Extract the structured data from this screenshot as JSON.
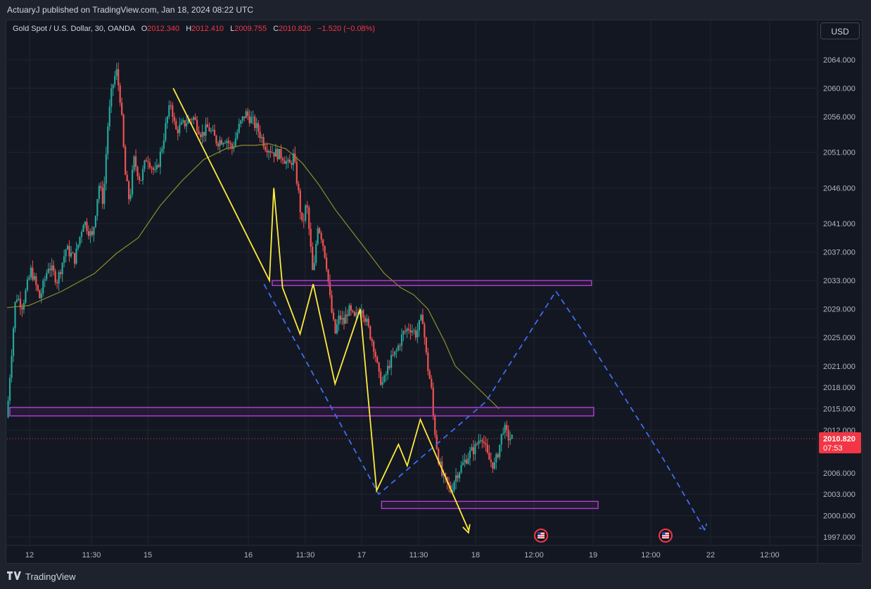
{
  "header": {
    "published_by": "ActuaryJ published on TradingView.com, Jan 18, 2024 08:22 UTC"
  },
  "legend": {
    "symbol": "Gold Spot / U.S. Dollar, 30, OANDA",
    "open_label": "O",
    "open": "2012.340",
    "high_label": "H",
    "high": "2012.410",
    "low_label": "L",
    "low": "2009.755",
    "close_label": "C",
    "close": "2010.820",
    "change": "−1.520 (−0.08%)"
  },
  "currency_button": "USD",
  "footer": {
    "brand": "TradingView"
  },
  "colors": {
    "background": "#131722",
    "up": "#26a69a",
    "down": "#ef5350",
    "ma_line": "#8b8e2a",
    "zigzag": "#ffeb3b",
    "projection": "#2962ff",
    "zone": "#9c27b0",
    "price_label": "#f23645"
  },
  "chart_data": {
    "type": "candlestick",
    "title": "Gold Spot / U.S. Dollar, 30, OANDA",
    "ylim": [
      1995.5,
      2067.5
    ],
    "yticks": [
      "2064.000",
      "2060.000",
      "2056.000",
      "2051.000",
      "2046.000",
      "2041.000",
      "2037.000",
      "2033.000",
      "2029.000",
      "2025.000",
      "2021.000",
      "2018.000",
      "2015.000",
      "2012.000",
      "2006.000",
      "2003.000",
      "2000.000",
      "1997.000"
    ],
    "xticks": [
      "12",
      "11:30",
      "15",
      "16",
      "11:30",
      "17",
      "11:30",
      "18",
      "12:00",
      "19",
      "12:00",
      "22",
      "12:00"
    ],
    "last_price": "2010.820",
    "countdown": "07:53",
    "ohlc_path": [
      [
        0,
        2013.8
      ],
      [
        2,
        2018.5
      ],
      [
        8,
        2031.0
      ],
      [
        14,
        2029.5
      ],
      [
        22,
        2034.5
      ],
      [
        30,
        2030.5
      ],
      [
        38,
        2035.2
      ],
      [
        46,
        2033.0
      ],
      [
        54,
        2037.5
      ],
      [
        62,
        2036.0
      ],
      [
        70,
        2041.5
      ],
      [
        78,
        2039.0
      ],
      [
        84,
        2046.5
      ],
      [
        88,
        2044.0
      ],
      [
        92,
        2054.5
      ],
      [
        96,
        2060.0
      ],
      [
        100,
        2062.5
      ],
      [
        104,
        2058.0
      ],
      [
        108,
        2048.0
      ],
      [
        112,
        2044.0
      ],
      [
        116,
        2050.0
      ],
      [
        122,
        2047.0
      ],
      [
        128,
        2050.5
      ],
      [
        136,
        2047.8
      ],
      [
        142,
        2052.0
      ],
      [
        146,
        2055.5
      ],
      [
        150,
        2058.0
      ],
      [
        154,
        2054.0
      ],
      [
        162,
        2055.0
      ],
      [
        170,
        2056.0
      ],
      [
        178,
        2053.5
      ],
      [
        184,
        2054.5
      ],
      [
        192,
        2052.5
      ],
      [
        200,
        2053.0
      ],
      [
        206,
        2051.5
      ],
      [
        212,
        2054.5
      ],
      [
        218,
        2056.5
      ],
      [
        224,
        2055.5
      ],
      [
        230,
        2054.0
      ],
      [
        236,
        2052.0
      ],
      [
        244,
        2051.0
      ],
      [
        252,
        2050.5
      ],
      [
        258,
        2049.0
      ],
      [
        262,
        2050.5
      ],
      [
        266,
        2046.0
      ],
      [
        270,
        2040.5
      ],
      [
        274,
        2044.0
      ],
      [
        278,
        2037.0
      ],
      [
        280,
        2033.0
      ],
      [
        284,
        2041.0
      ],
      [
        288,
        2039.0
      ],
      [
        292,
        2035.5
      ],
      [
        296,
        2029.5
      ],
      [
        300,
        2025.5
      ],
      [
        304,
        2028.0
      ],
      [
        308,
        2027.0
      ],
      [
        312,
        2029.0
      ],
      [
        318,
        2027.5
      ],
      [
        324,
        2029.5
      ],
      [
        330,
        2026.5
      ],
      [
        336,
        2023.5
      ],
      [
        340,
        2019.5
      ],
      [
        344,
        2018.5
      ],
      [
        350,
        2021.5
      ],
      [
        356,
        2023.0
      ],
      [
        362,
        2025.5
      ],
      [
        368,
        2026.5
      ],
      [
        374,
        2025.5
      ],
      [
        380,
        2028.0
      ],
      [
        384,
        2021.5
      ],
      [
        388,
        2018.0
      ],
      [
        390,
        2013.5
      ],
      [
        394,
        2008.5
      ],
      [
        398,
        2005.5
      ],
      [
        402,
        2004.5
      ],
      [
        406,
        2003.5
      ],
      [
        410,
        2005.5
      ],
      [
        416,
        2007.0
      ],
      [
        422,
        2008.5
      ],
      [
        428,
        2009.5
      ],
      [
        434,
        2011.5
      ],
      [
        440,
        2008.0
      ],
      [
        446,
        2007.0
      ],
      [
        450,
        2009.5
      ],
      [
        454,
        2012.5
      ],
      [
        458,
        2011.0
      ],
      [
        462,
        2010.8
      ]
    ],
    "ma_path": [
      [
        0,
        2029.2
      ],
      [
        20,
        2029.5
      ],
      [
        50,
        2031.5
      ],
      [
        80,
        2034.0
      ],
      [
        100,
        2036.8
      ],
      [
        120,
        2039.0
      ],
      [
        140,
        2043.5
      ],
      [
        160,
        2047.0
      ],
      [
        180,
        2050.0
      ],
      [
        200,
        2051.5
      ],
      [
        215,
        2052.0
      ],
      [
        228,
        2052.0
      ],
      [
        240,
        2052.2
      ],
      [
        255,
        2051.5
      ],
      [
        270,
        2049.5
      ],
      [
        285,
        2046.5
      ],
      [
        300,
        2043.0
      ],
      [
        315,
        2040.0
      ],
      [
        330,
        2037.0
      ],
      [
        345,
        2034.0
      ],
      [
        360,
        2032.0
      ],
      [
        372,
        2031.0
      ],
      [
        385,
        2029.0
      ],
      [
        400,
        2024.5
      ],
      [
        410,
        2021.0
      ],
      [
        420,
        2019.5
      ],
      [
        430,
        2018.0
      ],
      [
        440,
        2016.5
      ],
      [
        450,
        2015.0
      ]
    ],
    "zigzag": [
      [
        152,
        2060.0
      ],
      [
        240,
        2033.0
      ],
      [
        244,
        2046.0
      ],
      [
        252,
        2032.0
      ],
      [
        268,
        2025.5
      ],
      [
        280,
        2032.5
      ],
      [
        300,
        2018.5
      ],
      [
        323,
        2029.0
      ],
      [
        338,
        2003.5
      ],
      [
        358,
        2010.0
      ],
      [
        366,
        2007.0
      ],
      [
        378,
        2013.5
      ],
      [
        422,
        1998.0
      ]
    ],
    "zigzag_arrow": [
      422,
      1998.0
    ],
    "projection": [
      [
        235,
        2032.5
      ],
      [
        340,
        2003.0
      ],
      [
        438,
        2016.0
      ],
      [
        502,
        2031.5
      ],
      [
        526,
        2026.0
      ],
      [
        600,
        2008.0
      ],
      [
        638,
        1998.0
      ]
    ],
    "zones": [
      [
        240,
        532,
        2033.0,
        2032.3
      ],
      [
        0,
        534,
        2015.2,
        2014.0
      ],
      [
        340,
        538,
        2002.0,
        2001.0
      ]
    ]
  }
}
